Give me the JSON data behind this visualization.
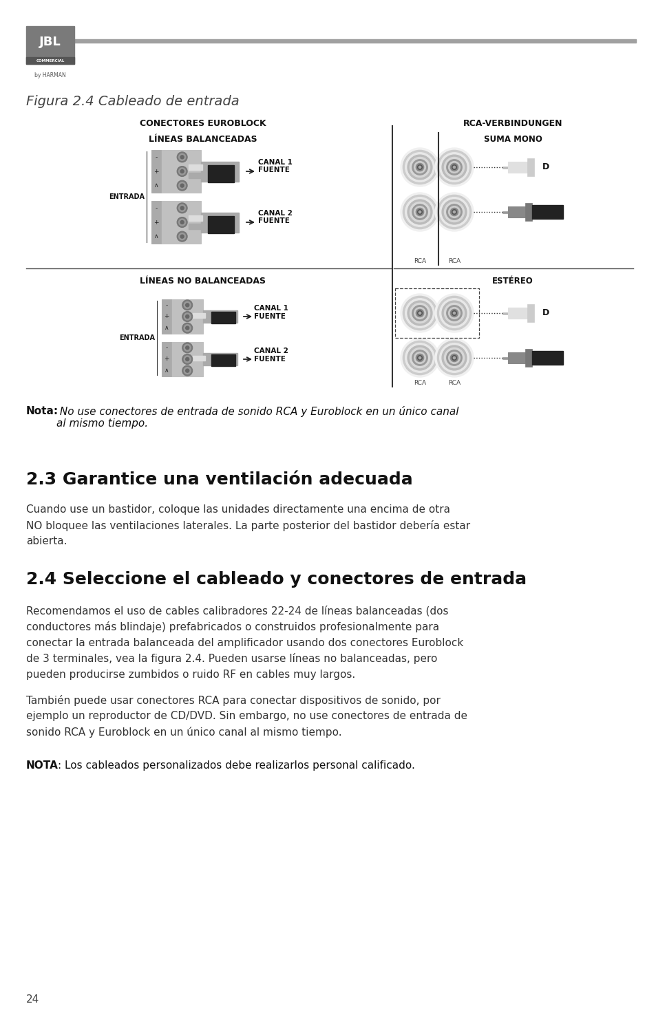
{
  "bg_color": "#ffffff",
  "figura_title": "Figura 2.4 Cableado de entrada",
  "diagram_label_euroblock": "CONECTORES EUROBLOCK",
  "diagram_label_rca": "RCA-VERBINDUNGEN",
  "diagram_label_balanced": "LÍNEAS BALANCEADAS",
  "diagram_label_unbalanced": "LÍNEAS NO BALANCEADAS",
  "diagram_label_sumamono": "SUMA MONO",
  "diagram_label_estereo": "ESTÉREO",
  "diagram_label_entrada": "ENTRADA",
  "diagram_canal1": "CANAL 1\nFUENTE",
  "diagram_canal2": "CANAL 2\nFUENTE",
  "note_bold": "Nota:",
  "note_italic": " No use conectores de entrada de sonido RCA y Euroblock en un único canal\nal mismo tiempo.",
  "section_23_title": "2.3 Garantice una ventilación adecuada",
  "section_23_body": "Cuando use un bastidor, coloque las unidades directamente una encima de otra\nNO bloquee las ventilaciones laterales. La parte posterior del bastidor debería estar\nabierta.",
  "section_24_title": "2.4 Seleccione el cableado y conectores de entrada",
  "section_24_body1": "Recomendamos el uso de cables calibradores 22-24 de líneas balanceadas (dos\nconductores más blindaje) prefabricados o construidos profesionalmente para\nconectar la entrada balanceada del amplificador usando dos conectores Euroblock\nde 3 terminales, vea la figura 2.4. Pueden usarse líneas no balanceadas, pero\npueden producirse zumbidos o ruido RF en cables muy largos.",
  "section_24_body2": "También puede usar conectores RCA para conectar dispositivos de sonido, por\nejemplo un reproductor de CD/DVD. Sin embargo, no use conectores de entrada de\nsonido RCA y Euroblock en un único canal al mismo tiempo.",
  "nota_bold": "NOTA",
  "nota_body": ": Los cableados personalizados debe realizarlos personal calificado.",
  "page_number": "24"
}
